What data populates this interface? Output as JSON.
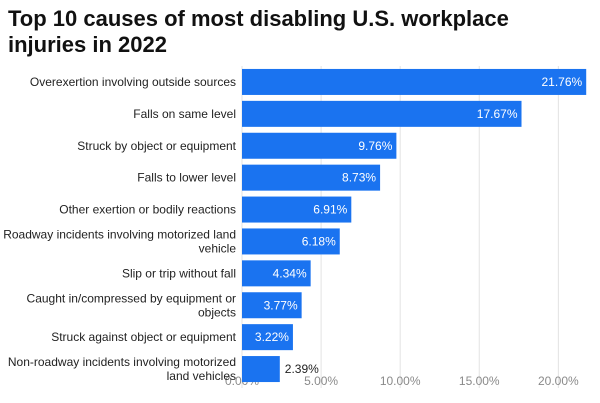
{
  "chart_data": {
    "type": "bar",
    "orientation": "horizontal",
    "title": "Top 10 causes of most disabling U.S. workplace injuries in 2022",
    "xlabel": "",
    "ylabel": "",
    "xlim": [
      0,
      22
    ],
    "grid": true,
    "bar_color": "#1a73f0",
    "ticks": [
      {
        "value": 0,
        "label": "0.00%"
      },
      {
        "value": 5,
        "label": "5.00%"
      },
      {
        "value": 10,
        "label": "10.00%"
      },
      {
        "value": 15,
        "label": "15.00%"
      },
      {
        "value": 20,
        "label": "20.00%"
      }
    ],
    "categories": [
      [
        "Overexertion involving outside sources"
      ],
      [
        "Falls on same level"
      ],
      [
        "Struck by object or equipment"
      ],
      [
        "Falls to lower level"
      ],
      [
        "Other exertion or bodily reactions"
      ],
      [
        "Roadway incidents involving motorized land",
        "vehicle"
      ],
      [
        "Slip or trip without fall"
      ],
      [
        "Caught in/compressed by equipment or",
        "objects"
      ],
      [
        "Struck against object or equipment"
      ],
      [
        "Non-roadway incidents involving motorized",
        "land vehicles"
      ]
    ],
    "values": [
      21.76,
      17.67,
      9.76,
      8.73,
      6.91,
      6.18,
      4.34,
      3.77,
      3.22,
      2.39
    ],
    "value_labels": [
      "21.76%",
      "17.67%",
      "9.76%",
      "8.73%",
      "6.91%",
      "6.18%",
      "4.34%",
      "3.77%",
      "3.22%",
      "2.39%"
    ]
  }
}
